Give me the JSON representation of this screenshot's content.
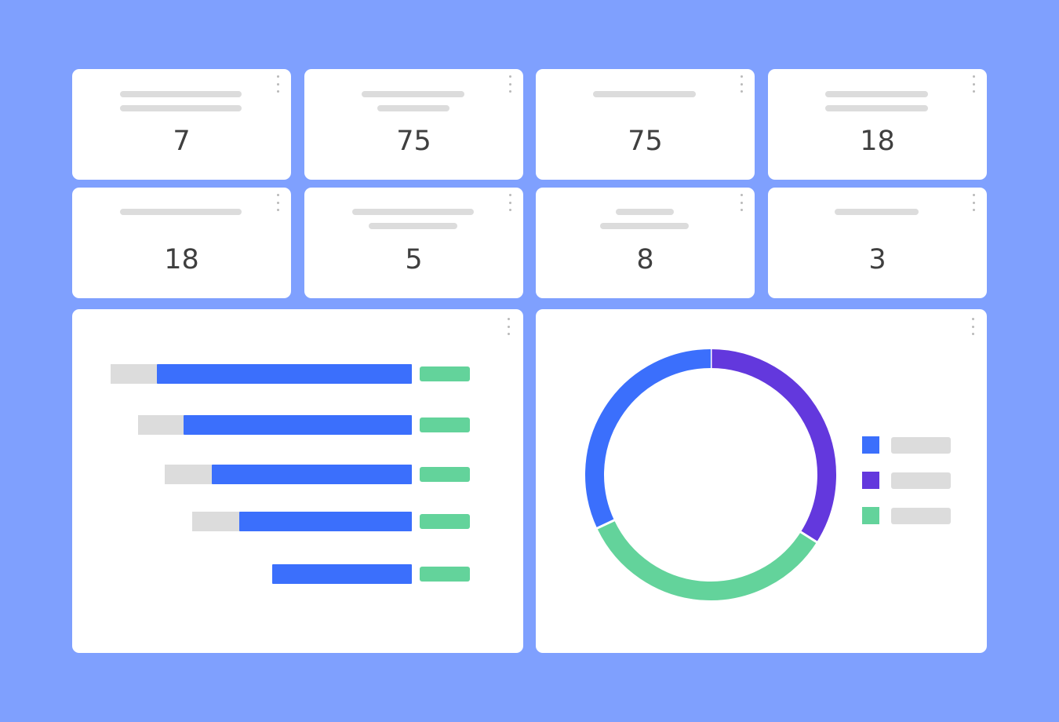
{
  "colors": {
    "background": "#7fa0fe",
    "card": "#ffffff",
    "placeholder": "#dcdcdc",
    "primary_blue": "#3b6ffc",
    "purple": "#6338dd",
    "green": "#63d39b",
    "value_text": "#3f3f3f"
  },
  "kpis": [
    {
      "value": "7"
    },
    {
      "value": "75"
    },
    {
      "value": "75"
    },
    {
      "value": "18"
    },
    {
      "value": "18"
    },
    {
      "value": "5"
    },
    {
      "value": "8"
    },
    {
      "value": "3"
    }
  ],
  "bar_panel": {
    "menu_icon": "kebab-menu-icon",
    "rows": [
      {
        "track": 1.0,
        "fill": 0.847
      },
      {
        "track": 0.91,
        "fill": 0.757
      },
      {
        "track": 0.82,
        "fill": 0.665
      },
      {
        "track": 0.73,
        "fill": 0.574
      },
      {
        "track": 0.0,
        "fill": 0.463
      }
    ]
  },
  "chart_data": {
    "type": "pie",
    "variant": "donut",
    "labels_visible": false,
    "series": [
      {
        "color": "#6338dd",
        "share": 0.34
      },
      {
        "color": "#63d39b",
        "share": 0.34
      },
      {
        "color": "#3b6ffc",
        "share": 0.32
      }
    ],
    "legend_placement": "right"
  }
}
